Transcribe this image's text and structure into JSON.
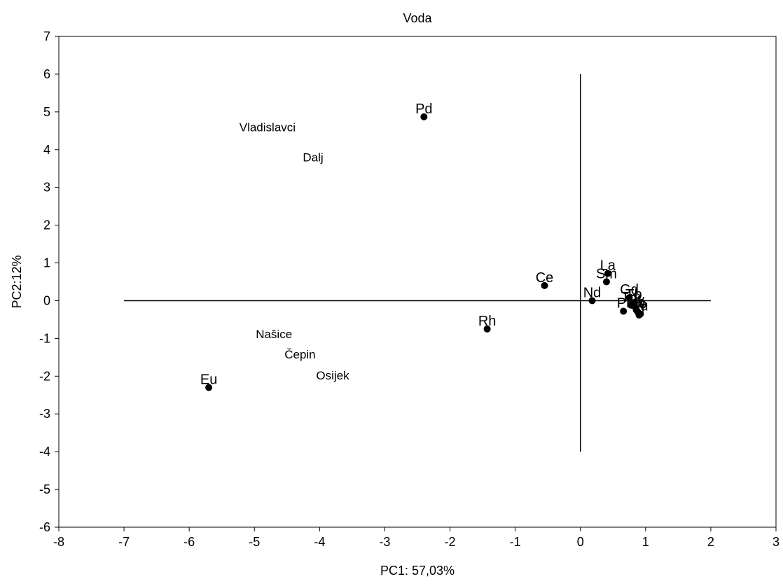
{
  "chart_data": {
    "type": "scatter",
    "title": "Voda",
    "xlabel": "PC1: 57,03%",
    "ylabel": "PC2:12%",
    "xlim": [
      -8,
      3
    ],
    "ylim": [
      -6,
      7
    ],
    "xticks": [
      "-8",
      "-7",
      "-6",
      "-5",
      "-4",
      "-3",
      "-2",
      "-1",
      "0",
      "1",
      "2",
      "3"
    ],
    "yticks": [
      "-6",
      "-5",
      "-4",
      "-3",
      "-2",
      "-1",
      "0",
      "1",
      "2",
      "3",
      "4",
      "5",
      "6",
      "7"
    ],
    "grid": false,
    "points": [
      {
        "label": "Pd",
        "x": -2.4,
        "y": 4.87
      },
      {
        "label": "Ce",
        "x": -0.55,
        "y": 0.4
      },
      {
        "label": "La",
        "x": 0.42,
        "y": 0.72
      },
      {
        "label": "Sm",
        "x": 0.4,
        "y": 0.5
      },
      {
        "label": "Nd",
        "x": 0.18,
        "y": 0.0
      },
      {
        "label": "Rh",
        "x": -1.43,
        "y": -0.75
      },
      {
        "label": "Eu",
        "x": -5.7,
        "y": -2.3
      },
      {
        "label": "Pt",
        "x": 0.66,
        "y": -0.28
      },
      {
        "label": "Gd",
        "x": 0.75,
        "y": 0.08
      },
      {
        "label": "Tb",
        "x": 0.82,
        "y": -0.05
      },
      {
        "label": "Dy",
        "x": 0.85,
        "y": -0.2
      },
      {
        "label": "Ho",
        "x": 0.88,
        "y": -0.3
      },
      {
        "label": "Er",
        "x": 0.9,
        "y": -0.38
      },
      {
        "label": "Tm",
        "x": 0.78,
        "y": -0.12
      },
      {
        "label": "Yb",
        "x": 0.86,
        "y": -0.25
      },
      {
        "label": "Lu",
        "x": 0.92,
        "y": -0.35
      }
    ],
    "reference_lines": {
      "horizontal": {
        "y": 0,
        "x_from": -7,
        "x_to": 2
      },
      "vertical": {
        "x": 0,
        "y_from": -4,
        "y_to": 6
      }
    },
    "annotations": [
      {
        "text": "Vladislavci",
        "x": -4.8,
        "y": 4.6
      },
      {
        "text": "Dalj",
        "x": -4.1,
        "y": 3.8
      },
      {
        "text": "Našice",
        "x": -4.7,
        "y": -0.88
      },
      {
        "text": "Čepin",
        "x": -4.3,
        "y": -1.42
      },
      {
        "text": "Osijek",
        "x": -3.8,
        "y": -1.98
      }
    ]
  }
}
